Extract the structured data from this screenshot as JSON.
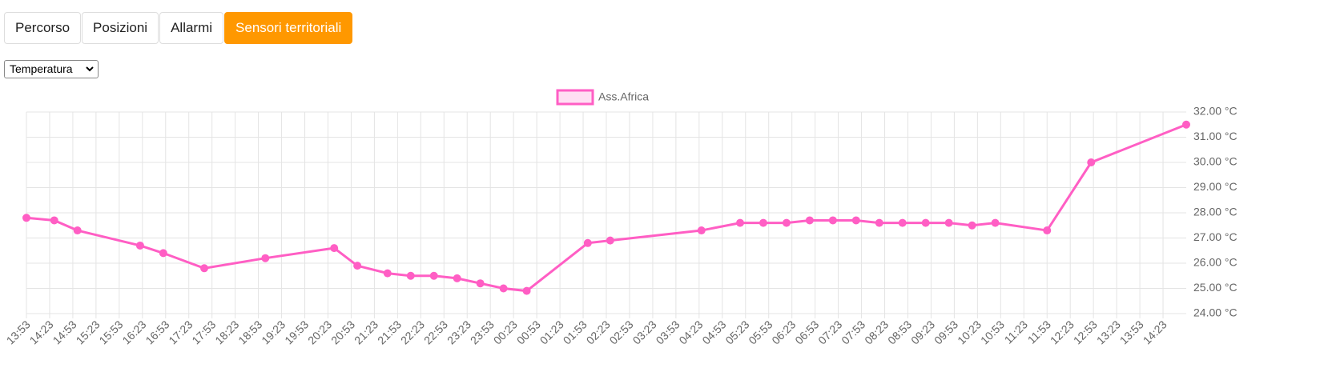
{
  "tabs": [
    "Percorso",
    "Posizioni",
    "Allarmi",
    "Sensori territoriali"
  ],
  "select": "Temperatura",
  "chart_data": {
    "type": "line",
    "series": [
      {
        "name": "Ass.Africa",
        "color": "#ff5ec4",
        "x": [
          "13:53",
          "14:29",
          "14:59",
          "16:20",
          "16:50",
          "17:43",
          "19:02",
          "20:31",
          "21:01",
          "21:40",
          "22:10",
          "22:40",
          "23:10",
          "23:40",
          "00:10",
          "00:40",
          "01:59",
          "02:28",
          "04:26",
          "05:16",
          "05:46",
          "06:16",
          "06:46",
          "07:16",
          "07:46",
          "08:16",
          "08:46",
          "09:16",
          "09:46",
          "10:16",
          "10:46",
          "11:53",
          "12:50",
          "14:53"
        ],
        "values": [
          27.8,
          27.7,
          27.3,
          26.7,
          26.4,
          25.8,
          26.2,
          26.6,
          25.9,
          25.6,
          25.5,
          25.5,
          25.4,
          25.2,
          25.0,
          24.9,
          26.8,
          26.9,
          27.3,
          27.6,
          27.6,
          27.6,
          27.7,
          27.7,
          27.7,
          27.6,
          27.6,
          27.6,
          27.6,
          27.5,
          27.6,
          27.3,
          30.0,
          31.5
        ]
      }
    ],
    "xlim": [
      "13:53",
      "14:53"
    ],
    "xticks": [
      "13:53",
      "14:23",
      "14:53",
      "15:23",
      "15:53",
      "16:23",
      "16:53",
      "17:23",
      "17:53",
      "18:23",
      "18:53",
      "19:23",
      "19:53",
      "20:23",
      "20:53",
      "21:23",
      "21:53",
      "22:23",
      "22:53",
      "23:23",
      "23:53",
      "00:23",
      "00:53",
      "01:23",
      "01:53",
      "02:23",
      "02:53",
      "03:23",
      "03:53",
      "04:23",
      "04:53",
      "05:23",
      "05:53",
      "06:23",
      "06:53",
      "07:23",
      "07:53",
      "08:23",
      "08:53",
      "09:23",
      "09:53",
      "10:23",
      "10:53",
      "11:23",
      "11:53",
      "12:23",
      "12:53",
      "13:23",
      "13:53",
      "14:23"
    ],
    "ylim": [
      24,
      32
    ],
    "yticks": [
      {
        "value": 24,
        "label": "24.00 °C"
      },
      {
        "value": 25,
        "label": "25.00 °C"
      },
      {
        "value": 26,
        "label": "26.00 °C"
      },
      {
        "value": 27,
        "label": "27.00 °C"
      },
      {
        "value": 28,
        "label": "28.00 °C"
      },
      {
        "value": 29,
        "label": "29.00 °C"
      },
      {
        "value": 30,
        "label": "30.00 °C"
      },
      {
        "value": 31,
        "label": "31.00 °C"
      },
      {
        "value": 32,
        "label": "32.00 °C"
      }
    ],
    "grid": true,
    "legend": "top"
  }
}
